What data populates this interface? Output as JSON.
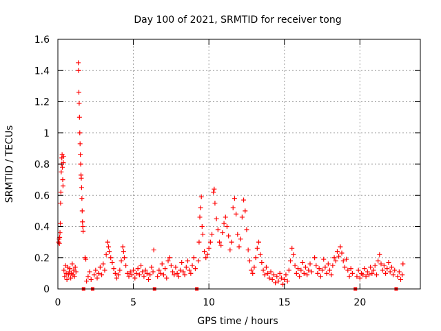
{
  "chart_data": {
    "type": "scatter",
    "title": "Day 100 of 2021, SRMTID for receiver tong",
    "xlabel": "GPS time / hours",
    "ylabel": "SRMTID / TECUs",
    "xlim": [
      0,
      24
    ],
    "ylim": [
      0,
      1.6
    ],
    "x_ticks": [
      0,
      5,
      10,
      15,
      20
    ],
    "x_tick_labels": [
      "0",
      "5",
      "10",
      "15",
      "20"
    ],
    "y_ticks": [
      0,
      0.2,
      0.4,
      0.6,
      0.8,
      1.0,
      1.2,
      1.4,
      1.6
    ],
    "y_tick_labels": [
      "0",
      "0.2",
      "0.4",
      "0.6",
      "0.8",
      "1",
      "1.2",
      "1.4",
      "1.6"
    ],
    "grid": true,
    "marker": "+",
    "color": "#ff0000",
    "gap_markers_x": [
      1.7,
      2.3,
      6.4,
      9.2,
      19.7,
      22.4
    ],
    "series": [
      {
        "name": "SRMTID",
        "points": [
          [
            0.05,
            0.3
          ],
          [
            0.08,
            0.32
          ],
          [
            0.1,
            0.29
          ],
          [
            0.12,
            0.33
          ],
          [
            0.14,
            0.36
          ],
          [
            0.16,
            0.42
          ],
          [
            0.18,
            0.55
          ],
          [
            0.2,
            0.62
          ],
          [
            0.22,
            0.75
          ],
          [
            0.24,
            0.8
          ],
          [
            0.26,
            0.84
          ],
          [
            0.28,
            0.86
          ],
          [
            0.3,
            0.78
          ],
          [
            0.32,
            0.7
          ],
          [
            0.34,
            0.66
          ],
          [
            0.36,
            0.81
          ],
          [
            0.38,
            0.85
          ],
          [
            0.4,
            0.12
          ],
          [
            0.45,
            0.08
          ],
          [
            0.5,
            0.15
          ],
          [
            0.55,
            0.1
          ],
          [
            0.6,
            0.06
          ],
          [
            0.65,
            0.14
          ],
          [
            0.7,
            0.09
          ],
          [
            0.75,
            0.11
          ],
          [
            0.8,
            0.13
          ],
          [
            0.85,
            0.07
          ],
          [
            0.9,
            0.1
          ],
          [
            0.95,
            0.16
          ],
          [
            1.0,
            0.09
          ],
          [
            1.05,
            0.12
          ],
          [
            1.1,
            0.08
          ],
          [
            1.15,
            0.14
          ],
          [
            1.2,
            0.11
          ],
          [
            1.35,
            1.45
          ],
          [
            1.37,
            1.4
          ],
          [
            1.39,
            1.26
          ],
          [
            1.41,
            1.19
          ],
          [
            1.43,
            1.1
          ],
          [
            1.45,
            1.0
          ],
          [
            1.47,
            0.93
          ],
          [
            1.49,
            0.86
          ],
          [
            1.51,
            0.8
          ],
          [
            1.53,
            0.73
          ],
          [
            1.55,
            0.71
          ],
          [
            1.57,
            0.65
          ],
          [
            1.59,
            0.58
          ],
          [
            1.61,
            0.5
          ],
          [
            1.63,
            0.43
          ],
          [
            1.65,
            0.4
          ],
          [
            1.67,
            0.37
          ],
          [
            1.8,
            0.2
          ],
          [
            1.85,
            0.19
          ],
          [
            1.9,
            0.05
          ],
          [
            2.0,
            0.08
          ],
          [
            2.1,
            0.11
          ],
          [
            2.2,
            0.06
          ],
          [
            2.4,
            0.09
          ],
          [
            2.5,
            0.12
          ],
          [
            2.6,
            0.07
          ],
          [
            2.7,
            0.1
          ],
          [
            2.8,
            0.14
          ],
          [
            2.9,
            0.09
          ],
          [
            3.0,
            0.16
          ],
          [
            3.1,
            0.12
          ],
          [
            3.2,
            0.22
          ],
          [
            3.3,
            0.3
          ],
          [
            3.35,
            0.27
          ],
          [
            3.4,
            0.24
          ],
          [
            3.5,
            0.2
          ],
          [
            3.6,
            0.17
          ],
          [
            3.7,
            0.13
          ],
          [
            3.8,
            0.1
          ],
          [
            3.9,
            0.07
          ],
          [
            4.0,
            0.09
          ],
          [
            4.1,
            0.12
          ],
          [
            4.2,
            0.18
          ],
          [
            4.3,
            0.27
          ],
          [
            4.35,
            0.24
          ],
          [
            4.4,
            0.2
          ],
          [
            4.5,
            0.15
          ],
          [
            4.6,
            0.1
          ],
          [
            4.7,
            0.08
          ],
          [
            4.8,
            0.11
          ],
          [
            4.9,
            0.09
          ],
          [
            5.0,
            0.12
          ],
          [
            5.1,
            0.07
          ],
          [
            5.2,
            0.1
          ],
          [
            5.3,
            0.13
          ],
          [
            5.4,
            0.09
          ],
          [
            5.5,
            0.15
          ],
          [
            5.6,
            0.11
          ],
          [
            5.7,
            0.08
          ],
          [
            5.8,
            0.12
          ],
          [
            5.9,
            0.1
          ],
          [
            6.0,
            0.06
          ],
          [
            6.1,
            0.09
          ],
          [
            6.2,
            0.14
          ],
          [
            6.3,
            0.11
          ],
          [
            6.35,
            0.25
          ],
          [
            6.6,
            0.08
          ],
          [
            6.7,
            0.12
          ],
          [
            6.8,
            0.1
          ],
          [
            6.9,
            0.16
          ],
          [
            7.0,
            0.09
          ],
          [
            7.1,
            0.13
          ],
          [
            7.2,
            0.07
          ],
          [
            7.3,
            0.18
          ],
          [
            7.4,
            0.2
          ],
          [
            7.5,
            0.15
          ],
          [
            7.6,
            0.11
          ],
          [
            7.7,
            0.09
          ],
          [
            7.8,
            0.14
          ],
          [
            7.9,
            0.1
          ],
          [
            8.0,
            0.08
          ],
          [
            8.1,
            0.12
          ],
          [
            8.2,
            0.17
          ],
          [
            8.3,
            0.11
          ],
          [
            8.4,
            0.09
          ],
          [
            8.5,
            0.14
          ],
          [
            8.6,
            0.18
          ],
          [
            8.7,
            0.12
          ],
          [
            8.8,
            0.1
          ],
          [
            8.9,
            0.15
          ],
          [
            9.0,
            0.2
          ],
          [
            9.1,
            0.13
          ],
          [
            9.3,
            0.18
          ],
          [
            9.35,
            0.3
          ],
          [
            9.4,
            0.46
          ],
          [
            9.45,
            0.52
          ],
          [
            9.5,
            0.59
          ],
          [
            9.55,
            0.4
          ],
          [
            9.6,
            0.35
          ],
          [
            9.7,
            0.24
          ],
          [
            9.8,
            0.2
          ],
          [
            9.9,
            0.22
          ],
          [
            10.0,
            0.26
          ],
          [
            10.1,
            0.3
          ],
          [
            10.2,
            0.35
          ],
          [
            10.3,
            0.62
          ],
          [
            10.35,
            0.64
          ],
          [
            10.4,
            0.55
          ],
          [
            10.5,
            0.45
          ],
          [
            10.6,
            0.38
          ],
          [
            10.7,
            0.3
          ],
          [
            10.8,
            0.28
          ],
          [
            10.9,
            0.36
          ],
          [
            11.0,
            0.42
          ],
          [
            11.1,
            0.46
          ],
          [
            11.2,
            0.4
          ],
          [
            11.3,
            0.34
          ],
          [
            11.4,
            0.25
          ],
          [
            11.5,
            0.3
          ],
          [
            11.6,
            0.52
          ],
          [
            11.7,
            0.58
          ],
          [
            11.8,
            0.48
          ],
          [
            11.9,
            0.35
          ],
          [
            12.0,
            0.27
          ],
          [
            12.1,
            0.32
          ],
          [
            12.2,
            0.46
          ],
          [
            12.3,
            0.57
          ],
          [
            12.4,
            0.5
          ],
          [
            12.5,
            0.38
          ],
          [
            12.6,
            0.25
          ],
          [
            12.7,
            0.18
          ],
          [
            12.8,
            0.12
          ],
          [
            12.9,
            0.1
          ],
          [
            13.0,
            0.14
          ],
          [
            13.1,
            0.2
          ],
          [
            13.2,
            0.26
          ],
          [
            13.3,
            0.3
          ],
          [
            13.4,
            0.22
          ],
          [
            13.5,
            0.17
          ],
          [
            13.6,
            0.12
          ],
          [
            13.7,
            0.09
          ],
          [
            13.8,
            0.14
          ],
          [
            13.9,
            0.1
          ],
          [
            14.0,
            0.07
          ],
          [
            14.1,
            0.11
          ],
          [
            14.2,
            0.06
          ],
          [
            14.3,
            0.09
          ],
          [
            14.4,
            0.04
          ],
          [
            14.5,
            0.08
          ],
          [
            14.6,
            0.05
          ],
          [
            14.7,
            0.1
          ],
          [
            14.8,
            0.07
          ],
          [
            14.9,
            0.03
          ],
          [
            15.0,
            0.06
          ],
          [
            15.1,
            0.09
          ],
          [
            15.2,
            0.05
          ],
          [
            15.3,
            0.12
          ],
          [
            15.4,
            0.18
          ],
          [
            15.5,
            0.26
          ],
          [
            15.6,
            0.22
          ],
          [
            15.7,
            0.15
          ],
          [
            15.8,
            0.1
          ],
          [
            15.9,
            0.13
          ],
          [
            16.0,
            0.08
          ],
          [
            16.1,
            0.12
          ],
          [
            16.2,
            0.17
          ],
          [
            16.3,
            0.1
          ],
          [
            16.4,
            0.14
          ],
          [
            16.5,
            0.09
          ],
          [
            16.6,
            0.12
          ],
          [
            16.7,
            0.16
          ],
          [
            16.8,
            0.11
          ],
          [
            17.0,
            0.2
          ],
          [
            17.1,
            0.15
          ],
          [
            17.2,
            0.1
          ],
          [
            17.3,
            0.13
          ],
          [
            17.4,
            0.08
          ],
          [
            17.5,
            0.12
          ],
          [
            17.6,
            0.19
          ],
          [
            17.7,
            0.14
          ],
          [
            17.8,
            0.1
          ],
          [
            17.9,
            0.16
          ],
          [
            18.0,
            0.12
          ],
          [
            18.1,
            0.09
          ],
          [
            18.2,
            0.15
          ],
          [
            18.3,
            0.2
          ],
          [
            18.4,
            0.18
          ],
          [
            18.5,
            0.24
          ],
          [
            18.6,
            0.21
          ],
          [
            18.7,
            0.27
          ],
          [
            18.8,
            0.23
          ],
          [
            18.9,
            0.18
          ],
          [
            19.0,
            0.14
          ],
          [
            19.1,
            0.19
          ],
          [
            19.2,
            0.12
          ],
          [
            19.3,
            0.08
          ],
          [
            19.4,
            0.13
          ],
          [
            19.5,
            0.1
          ],
          [
            19.8,
            0.08
          ],
          [
            19.9,
            0.12
          ],
          [
            20.0,
            0.07
          ],
          [
            20.1,
            0.1
          ],
          [
            20.2,
            0.09
          ],
          [
            20.3,
            0.13
          ],
          [
            20.4,
            0.08
          ],
          [
            20.5,
            0.11
          ],
          [
            20.6,
            0.09
          ],
          [
            20.7,
            0.14
          ],
          [
            20.8,
            0.1
          ],
          [
            20.9,
            0.12
          ],
          [
            21.0,
            0.15
          ],
          [
            21.1,
            0.09
          ],
          [
            21.2,
            0.18
          ],
          [
            21.3,
            0.22
          ],
          [
            21.4,
            0.16
          ],
          [
            21.5,
            0.12
          ],
          [
            21.6,
            0.15
          ],
          [
            21.7,
            0.1
          ],
          [
            21.8,
            0.13
          ],
          [
            21.9,
            0.17
          ],
          [
            22.0,
            0.11
          ],
          [
            22.1,
            0.14
          ],
          [
            22.2,
            0.09
          ],
          [
            22.3,
            0.12
          ],
          [
            22.5,
            0.08
          ],
          [
            22.6,
            0.11
          ],
          [
            22.7,
            0.06
          ],
          [
            22.8,
            0.09
          ],
          [
            22.85,
            0.16
          ]
        ]
      }
    ]
  }
}
